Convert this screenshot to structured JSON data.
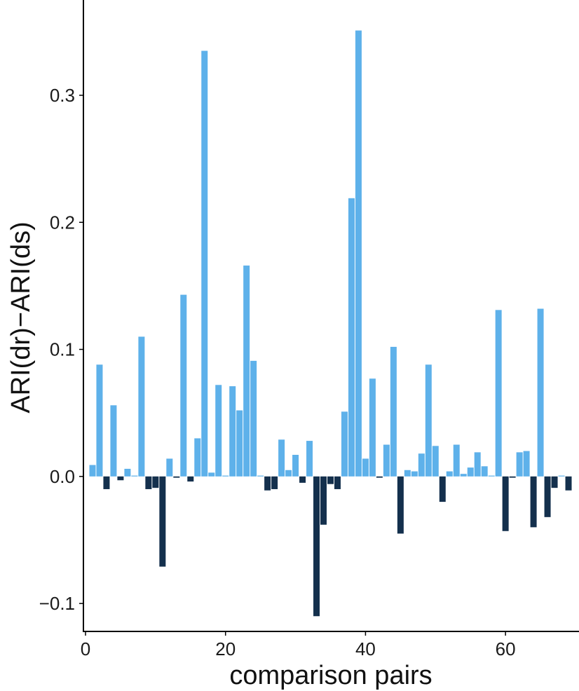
{
  "chart_data": {
    "type": "bar",
    "xlabel": "comparison pairs",
    "ylabel": "ARI(dr)−ARI(ds)",
    "xlim": [
      -0.3,
      70.5
    ],
    "ylim": [
      -0.122,
      0.375
    ],
    "xticks": [
      0,
      20,
      40,
      60
    ],
    "xtick_labels": [
      "0",
      "20",
      "40",
      "60"
    ],
    "yticks": [
      -0.1,
      0.0,
      0.1,
      0.2,
      0.3
    ],
    "ytick_labels": [
      "−0.1",
      "0.0",
      "0.1",
      "0.2",
      "0.3"
    ],
    "grid": false,
    "legend": "none",
    "colors": {
      "positive": "#5eb1ea",
      "negative": "#14304d"
    },
    "x": [
      1,
      2,
      3,
      4,
      5,
      6,
      7,
      8,
      9,
      10,
      11,
      12,
      13,
      14,
      15,
      16,
      17,
      18,
      19,
      20,
      21,
      22,
      23,
      24,
      25,
      26,
      27,
      28,
      29,
      30,
      31,
      32,
      33,
      34,
      35,
      36,
      37,
      38,
      39,
      40,
      41,
      42,
      43,
      44,
      45,
      46,
      47,
      48,
      49,
      50,
      51,
      52,
      53,
      54,
      55,
      56,
      57,
      58,
      59,
      60,
      61,
      62,
      63,
      64,
      65,
      66,
      67,
      68,
      69
    ],
    "values": [
      0.009,
      0.088,
      -0.01,
      0.056,
      -0.003,
      0.006,
      0.0,
      0.11,
      -0.01,
      -0.009,
      -0.071,
      0.014,
      -0.001,
      0.143,
      -0.004,
      0.03,
      0.335,
      0.003,
      0.072,
      0.0,
      0.071,
      0.052,
      0.166,
      0.091,
      0.0,
      -0.011,
      -0.01,
      0.029,
      0.005,
      0.017,
      -0.005,
      0.028,
      -0.11,
      -0.038,
      -0.006,
      -0.01,
      0.051,
      0.219,
      0.351,
      0.014,
      0.077,
      -0.001,
      0.025,
      0.102,
      -0.045,
      0.005,
      0.004,
      0.018,
      0.088,
      0.024,
      -0.02,
      0.004,
      0.025,
      0.002,
      0.007,
      0.019,
      0.008,
      0.0,
      0.131,
      -0.043,
      -0.001,
      0.019,
      0.02,
      -0.04,
      0.132,
      -0.032,
      -0.009,
      0.0,
      -0.011
    ]
  }
}
